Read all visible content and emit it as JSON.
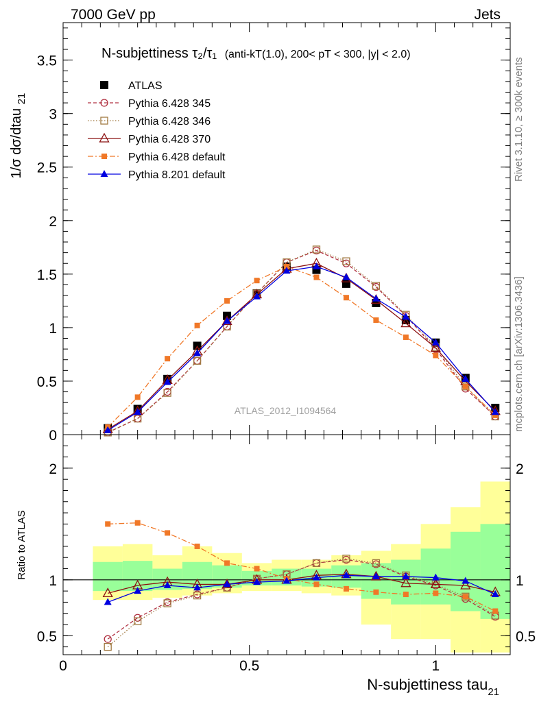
{
  "header": {
    "left": "7000 GeV pp",
    "right": "Jets"
  },
  "title": {
    "main": "N-subjettiness τ₂/τ₁",
    "detail": "(anti-kT(1.0), 200< pT < 300, |y| < 2.0)"
  },
  "side_texts": {
    "rivet": "Rivet 3.1.10, ≥ 300k events",
    "mcplots": "mcplots.cern.ch [arXiv:1306.3436]"
  },
  "watermark": "ATLAS_2012_I1094564",
  "colors": {
    "ATLAS": "#000000",
    "p345": "#b03040",
    "p346": "#a07840",
    "p370": "#8b1010",
    "p6def": "#f07828",
    "p8def": "#0000e0",
    "band_yellow": "#ffff99",
    "band_green": "#99ff99"
  },
  "chart_data": [
    {
      "type": "scatter",
      "panel": "main",
      "ylabel": "1/σ dσ/dtau21",
      "xlim": [
        0,
        1.2
      ],
      "ylim": [
        0,
        3.85
      ],
      "yticks": [
        "0",
        "0.5",
        "1",
        "1.5",
        "2",
        "2.5",
        "3",
        "3.5"
      ],
      "x": [
        0.12,
        0.2,
        0.28,
        0.36,
        0.44,
        0.52,
        0.6,
        0.68,
        0.76,
        0.84,
        0.92,
        1.0,
        1.08,
        1.16
      ],
      "series": [
        {
          "key": "ATLAS",
          "name": "ATLAS",
          "style": "data",
          "values": [
            0.06,
            0.24,
            0.52,
            0.83,
            1.11,
            1.32,
            1.57,
            1.54,
            1.41,
            1.23,
            1.07,
            0.86,
            0.53,
            0.25
          ]
        },
        {
          "key": "p345",
          "name": "Pythia 6.428 345",
          "style": "circle-dash",
          "values": [
            0.02,
            0.15,
            0.4,
            0.69,
            1.01,
            1.32,
            1.61,
            1.72,
            1.6,
            1.38,
            1.11,
            0.8,
            0.43,
            0.17
          ]
        },
        {
          "key": "p346",
          "name": "Pythia 6.428 346",
          "style": "square-dot",
          "values": [
            0.02,
            0.15,
            0.39,
            0.69,
            1.01,
            1.32,
            1.61,
            1.73,
            1.62,
            1.39,
            1.12,
            0.82,
            0.45,
            0.17
          ]
        },
        {
          "key": "p370",
          "name": "Pythia 6.428 370",
          "style": "triangle-solid",
          "values": [
            0.05,
            0.22,
            0.51,
            0.78,
            1.06,
            1.31,
            1.55,
            1.6,
            1.46,
            1.26,
            1.04,
            0.81,
            0.5,
            0.22
          ]
        },
        {
          "key": "p6def",
          "name": "Pythia 6.428 default",
          "style": "fsquare-dashdot",
          "values": [
            0.07,
            0.35,
            0.71,
            1.02,
            1.25,
            1.44,
            1.57,
            1.47,
            1.28,
            1.07,
            0.91,
            0.74,
            0.45,
            0.18
          ]
        },
        {
          "key": "p8def",
          "name": "Pythia 8.201 default",
          "style": "ftriangle-solid",
          "values": [
            0.04,
            0.21,
            0.49,
            0.76,
            1.06,
            1.29,
            1.53,
            1.57,
            1.47,
            1.27,
            1.1,
            0.86,
            0.52,
            0.21
          ]
        }
      ]
    },
    {
      "type": "scatter",
      "panel": "ratio",
      "ylabel": "Ratio to ATLAS",
      "xlabel": "N-subjettiness tau21",
      "xlim": [
        0,
        1.2
      ],
      "ylim": [
        0.33,
        2.3
      ],
      "yticks": [
        "0.5",
        "1",
        "2"
      ],
      "xticks": [
        "0",
        "0.5",
        "1"
      ],
      "x": [
        0.12,
        0.2,
        0.28,
        0.36,
        0.44,
        0.52,
        0.6,
        0.68,
        0.76,
        0.84,
        0.92,
        1.0,
        1.08,
        1.16
      ],
      "bins": [
        [
          0.08,
          0.16
        ],
        [
          0.16,
          0.24
        ],
        [
          0.24,
          0.32
        ],
        [
          0.32,
          0.4
        ],
        [
          0.4,
          0.48
        ],
        [
          0.48,
          0.56
        ],
        [
          0.56,
          0.64
        ],
        [
          0.64,
          0.72
        ],
        [
          0.72,
          0.8
        ],
        [
          0.8,
          0.88
        ],
        [
          0.88,
          0.96
        ],
        [
          0.96,
          1.04
        ],
        [
          1.04,
          1.12
        ],
        [
          1.12,
          1.2
        ]
      ],
      "band_yellow": [
        [
          0.82,
          1.3
        ],
        [
          0.82,
          1.32
        ],
        [
          0.84,
          1.22
        ],
        [
          0.86,
          1.3
        ],
        [
          0.88,
          1.24
        ],
        [
          0.9,
          1.15
        ],
        [
          0.9,
          1.18
        ],
        [
          0.88,
          1.18
        ],
        [
          0.86,
          1.22
        ],
        [
          0.6,
          1.26
        ],
        [
          0.47,
          1.32
        ],
        [
          0.47,
          1.5
        ],
        [
          0.35,
          1.65
        ],
        [
          0.35,
          1.88
        ]
      ],
      "band_green": [
        [
          0.9,
          1.16
        ],
        [
          0.9,
          1.17
        ],
        [
          0.91,
          1.1
        ],
        [
          0.92,
          1.16
        ],
        [
          0.93,
          1.13
        ],
        [
          0.95,
          1.08
        ],
        [
          0.95,
          1.1
        ],
        [
          0.94,
          1.1
        ],
        [
          0.93,
          1.13
        ],
        [
          0.83,
          1.15
        ],
        [
          0.78,
          1.18
        ],
        [
          0.78,
          1.28
        ],
        [
          0.72,
          1.43
        ],
        [
          0.65,
          1.5
        ]
      ],
      "series": [
        {
          "key": "p345",
          "values": [
            0.47,
            0.66,
            0.8,
            0.87,
            0.93,
            1.01,
            1.05,
            1.15,
            1.18,
            1.14,
            1.03,
            0.95,
            0.83,
            0.67
          ]
        },
        {
          "key": "p346",
          "values": [
            0.4,
            0.63,
            0.79,
            0.86,
            0.93,
            1.01,
            1.05,
            1.15,
            1.19,
            1.15,
            1.04,
            0.96,
            0.85,
            0.68
          ]
        },
        {
          "key": "p370",
          "values": [
            0.88,
            0.95,
            0.98,
            0.96,
            0.96,
            1.0,
            1.0,
            1.04,
            1.05,
            1.03,
            0.97,
            0.96,
            0.95,
            0.89
          ]
        },
        {
          "key": "p6def",
          "values": [
            1.5,
            1.51,
            1.42,
            1.3,
            1.15,
            1.1,
            1.01,
            0.96,
            0.92,
            0.89,
            0.87,
            0.88,
            0.85,
            0.72
          ]
        },
        {
          "key": "p8def",
          "values": [
            0.8,
            0.9,
            0.95,
            0.93,
            0.96,
            0.98,
            0.99,
            1.02,
            1.04,
            1.03,
            1.03,
            1.02,
            0.99,
            0.87
          ]
        }
      ]
    }
  ]
}
